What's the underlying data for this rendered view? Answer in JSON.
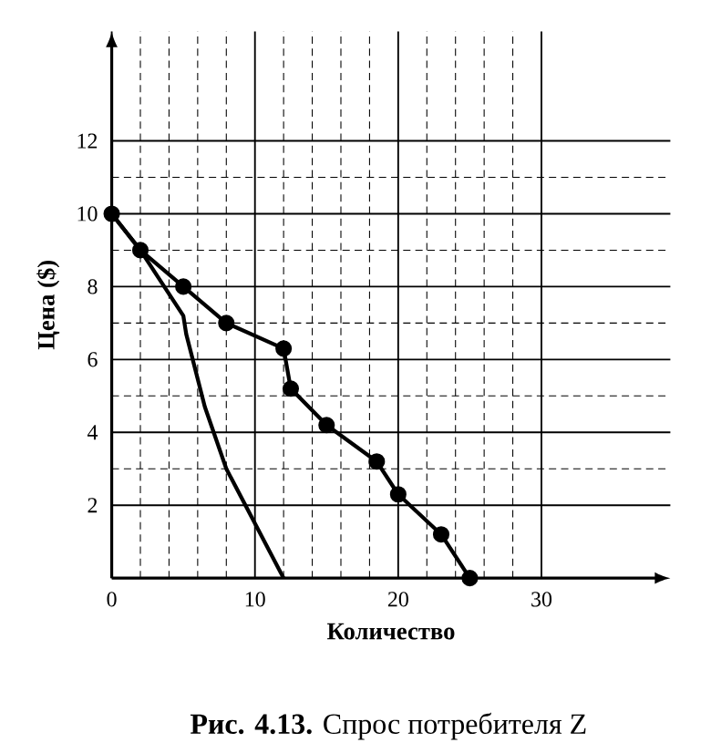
{
  "chart_data": {
    "type": "line",
    "title": "**Рис. 4.13.** Спрос потребителя Z",
    "xlabel": "Количество",
    "ylabel": "Цена ($)",
    "xlim": [
      0,
      39
    ],
    "ylim": [
      0,
      15
    ],
    "xticks": [
      0,
      10,
      20,
      30
    ],
    "yticks": [
      2,
      4,
      6,
      8,
      10,
      12
    ],
    "grid": true,
    "line_style": "solid",
    "series": [
      {
        "color": "#000000",
        "marker": "circle",
        "x": [
          0,
          2,
          5,
          8,
          12,
          12.5,
          15,
          18.5,
          20,
          23,
          25
        ],
        "values": [
          10,
          9,
          8,
          7,
          6.3,
          5.2,
          4.2,
          3.2,
          2.3,
          1.2,
          0
        ]
      },
      {
        "color": "#000000",
        "marker": "none",
        "x": [
          0,
          2,
          4,
          5,
          5.2,
          6.5,
          8,
          12
        ],
        "values": [
          10,
          9,
          7.8,
          7.2,
          6.7,
          4.7,
          3,
          0
        ]
      }
    ]
  }
}
